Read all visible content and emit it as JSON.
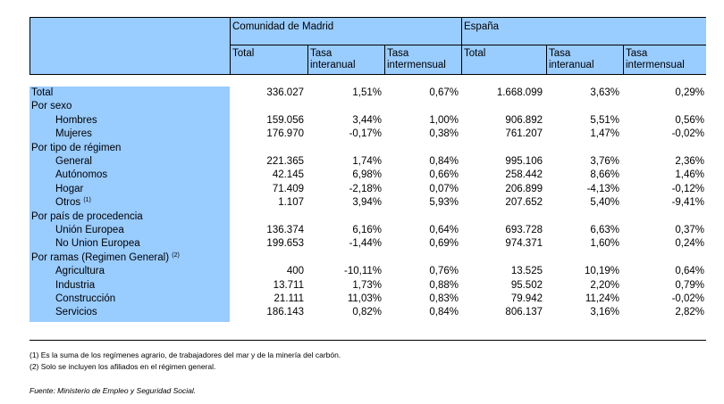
{
  "header": {
    "group_madrid": "Comunidad de Madrid",
    "group_espana": "España",
    "total": "Total",
    "tasa_interanual": [
      "Tasa",
      "interanual"
    ],
    "tasa_intermensual": [
      "Tasa",
      "intermensual"
    ]
  },
  "rows": [
    {
      "label": "Total",
      "indent": false,
      "values": [
        "336.027",
        "1,51%",
        "0,67%",
        "1.668.099",
        "3,63%",
        "0,29%"
      ]
    },
    {
      "label": "Por sexo",
      "indent": false,
      "values": null
    },
    {
      "label": "Hombres",
      "indent": true,
      "values": [
        "159.056",
        "3,44%",
        "1,00%",
        "906.892",
        "5,51%",
        "0,56%"
      ]
    },
    {
      "label": "Mujeres",
      "indent": true,
      "values": [
        "176.970",
        "-0,17%",
        "0,38%",
        "761.207",
        "1,47%",
        "-0,02%"
      ]
    },
    {
      "label": "Por tipo de régimen",
      "indent": false,
      "values": null
    },
    {
      "label": "General",
      "indent": true,
      "values": [
        "221.365",
        "1,74%",
        "0,84%",
        "995.106",
        "3,76%",
        "2,36%"
      ]
    },
    {
      "label": "Autónomos",
      "indent": true,
      "values": [
        "42.145",
        "6,98%",
        "0,66%",
        "258.442",
        "8,66%",
        "1,46%"
      ]
    },
    {
      "label": "Hogar",
      "indent": true,
      "values": [
        "71.409",
        "-2,18%",
        "0,07%",
        "206.899",
        "-4,13%",
        "-0,12%"
      ]
    },
    {
      "label": "Otros",
      "sup": "(1)",
      "indent": true,
      "values": [
        "1.107",
        "3,94%",
        "5,93%",
        "207.652",
        "5,40%",
        "-9,41%"
      ]
    },
    {
      "label": "Por país de procedencia",
      "indent": false,
      "values": null
    },
    {
      "label": "Unión Europea",
      "indent": true,
      "values": [
        "136.374",
        "6,16%",
        "0,64%",
        "693.728",
        "6,63%",
        "0,37%"
      ]
    },
    {
      "label": "No Union Europea",
      "indent": true,
      "values": [
        "199.653",
        "-1,44%",
        "0,69%",
        "974.371",
        "1,60%",
        "0,24%"
      ]
    },
    {
      "label": "Por ramas (Regimen General)",
      "sup": "(2)",
      "indent": false,
      "values": null
    },
    {
      "label": "Agricultura",
      "indent": true,
      "values": [
        "400",
        "-10,11%",
        "0,76%",
        "13.525",
        "10,19%",
        "0,64%"
      ]
    },
    {
      "label": "Industria",
      "indent": true,
      "values": [
        "13.711",
        "1,73%",
        "0,88%",
        "95.502",
        "2,20%",
        "0,79%"
      ]
    },
    {
      "label": "Construcción",
      "indent": true,
      "values": [
        "21.111",
        "11,03%",
        "0,83%",
        "79.942",
        "11,24%",
        "-0,02%"
      ]
    },
    {
      "label": "Servicios",
      "indent": true,
      "values": [
        "186.143",
        "0,82%",
        "0,84%",
        "806.137",
        "3,16%",
        "2,82%"
      ]
    }
  ],
  "notes": [
    "(1) Es la suma de los regímenes  agrario, de trabajadores del mar y de la minería del carbón.",
    "(2) Solo se incluyen los afiliados en el régimen general."
  ],
  "source": "Fuente: Ministerio de Empleo y Seguridad Social.",
  "colors": {
    "header_fill": "#99ccff",
    "label_fill": "#99ccff"
  }
}
